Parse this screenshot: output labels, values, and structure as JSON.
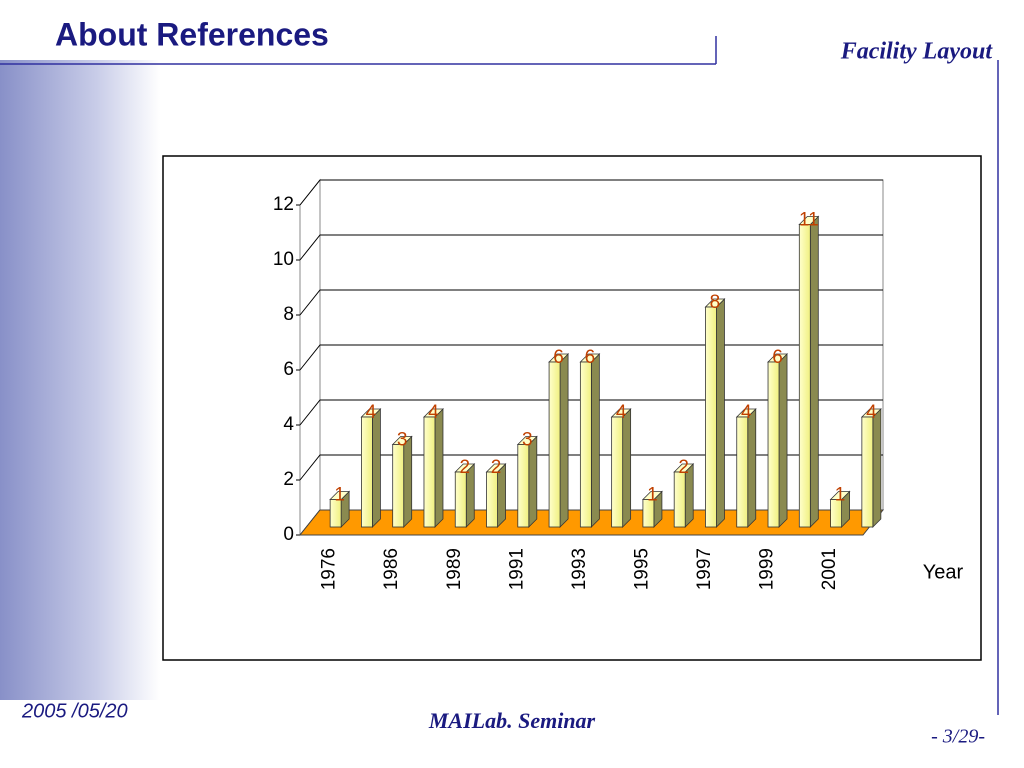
{
  "slide": {
    "title": "About References",
    "header_right": "Facility Layout",
    "date": "2005 /05/20",
    "footer": "MAILab.  Seminar",
    "page": "- 3/29-"
  },
  "chart_data": {
    "type": "bar3d",
    "categories": [
      "1976",
      null,
      "1986",
      null,
      "1989",
      null,
      "1991",
      null,
      "1993",
      null,
      "1995",
      null,
      "1997",
      null,
      "1999",
      null,
      "2001",
      null
    ],
    "values": [
      1,
      4,
      3,
      4,
      2,
      2,
      3,
      6,
      6,
      4,
      1,
      2,
      8,
      4,
      6,
      11,
      1,
      4
    ],
    "color": "#ffff99",
    "label_color": "#c04000",
    "floor_color": "#ff9900",
    "xlabel": "Year",
    "ylim": [
      0,
      12
    ],
    "yticks": [
      0,
      2,
      4,
      6,
      8,
      10,
      12
    ],
    "grid": true
  }
}
